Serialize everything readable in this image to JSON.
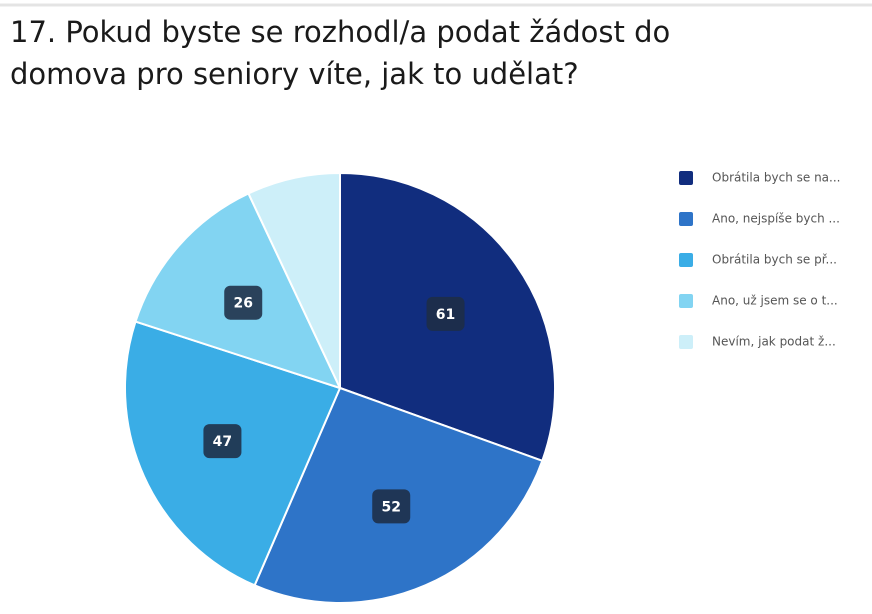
{
  "chart_data": {
    "type": "pie",
    "title": "17. Pokud byste se rozhodl/a podat žádost do domova pro seniory víte, jak to udělat?",
    "categories": [
      "Obrátila bych se na...",
      "Ano, nejspíše bych ...",
      "Obrátila bych se př...",
      "Ano, už jsem se o t...",
      "Nevím, jak podat ž..."
    ],
    "values": [
      61,
      52,
      47,
      26,
      14
    ],
    "colors": [
      "#112d7e",
      "#2e74c8",
      "#3aade6",
      "#82d4f2",
      "#cdeff9"
    ],
    "legend": "right"
  }
}
